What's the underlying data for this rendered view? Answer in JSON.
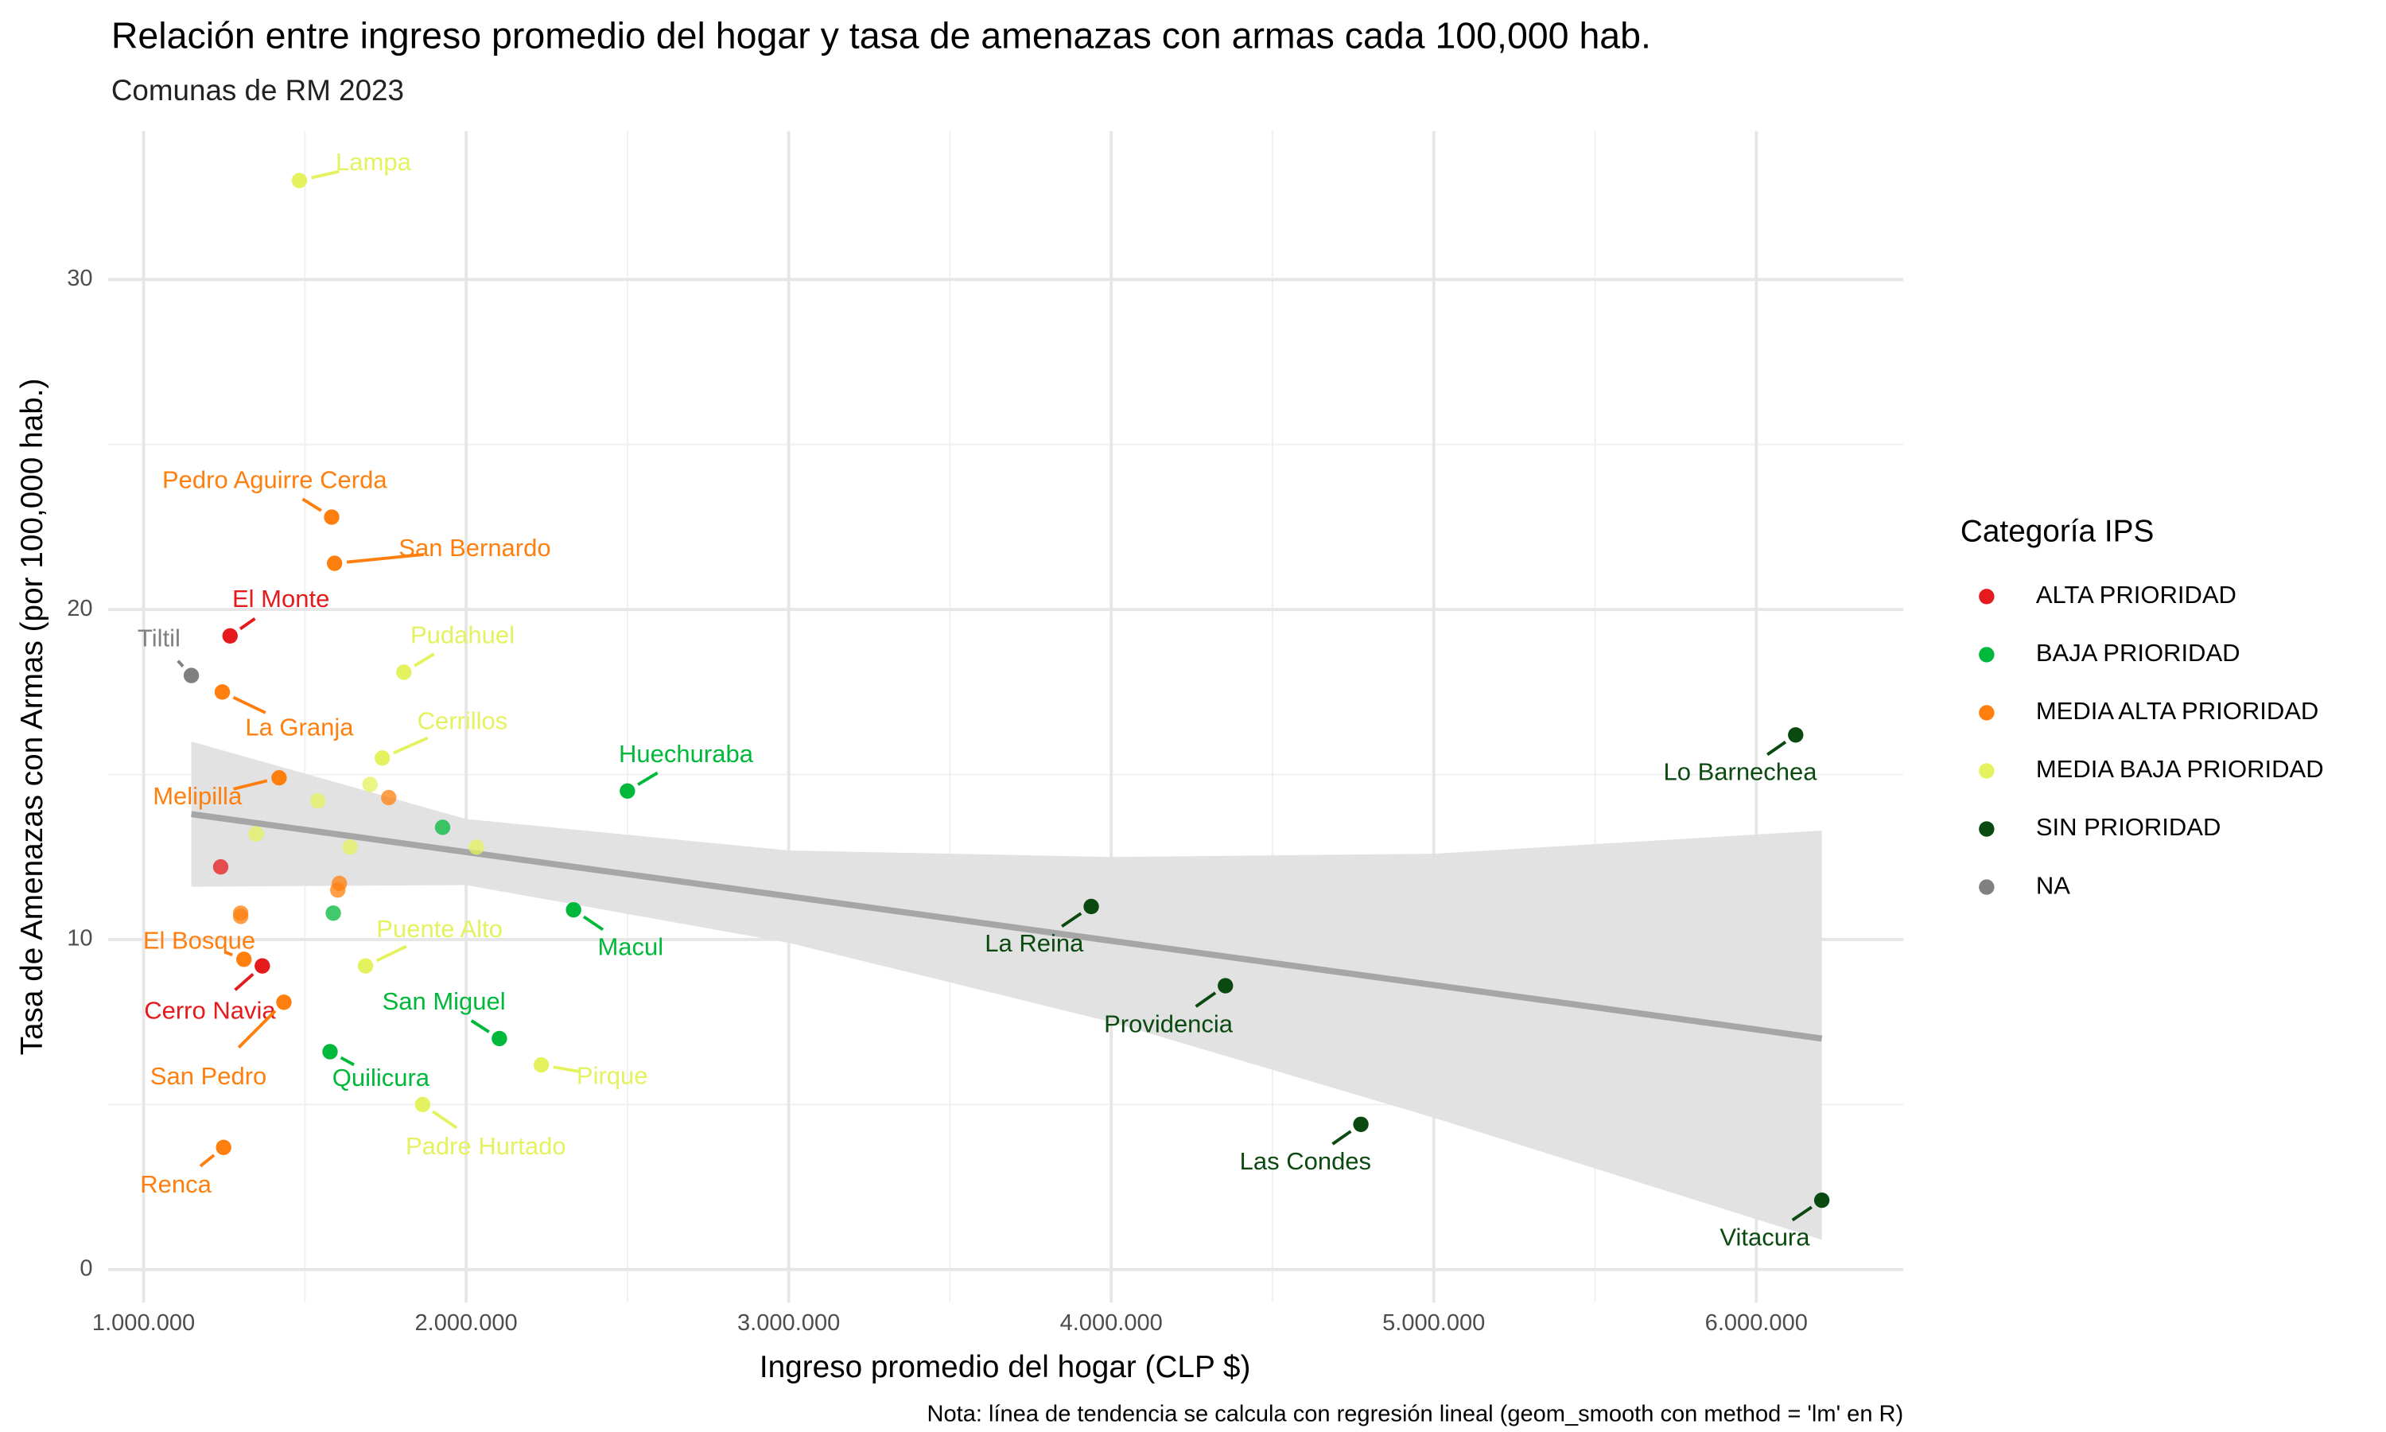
{
  "chart_data": {
    "type": "scatter",
    "title": "Relación entre ingreso promedio del hogar y tasa de amenazas con armas cada 100,000 hab.",
    "subtitle": "Comunas de RM 2023",
    "x_label": "Ingreso promedio del hogar (CLP $)",
    "y_label": "Tasa de Amenazas con Armas (por 100,000 hab.)",
    "caption": "Nota: línea de tendencia se calcula con regresión lineal (geom_smooth con method = 'lm' en R)",
    "legend_title": "Categoría IPS",
    "legend_position": "right",
    "grid": true,
    "xlim": [
      890000,
      6456000
    ],
    "ylim": [
      -1.0,
      34.5
    ],
    "xticks": [
      {
        "value": 1000000,
        "label": "1.000.000"
      },
      {
        "value": 2000000,
        "label": "2.000.000"
      },
      {
        "value": 3000000,
        "label": "3.000.000"
      },
      {
        "value": 4000000,
        "label": "4.000.000"
      },
      {
        "value": 5000000,
        "label": "5.000.000"
      },
      {
        "value": 6000000,
        "label": "6.000.000"
      }
    ],
    "yticks": [
      0,
      10,
      20,
      30
    ],
    "trend": {
      "color": "#a6a6a6",
      "band_color": "#e0e0e0",
      "x": [
        1148000,
        2000000,
        3000000,
        4000000,
        5000000,
        6203000
      ],
      "values": [
        13.8,
        12.65,
        11.31,
        9.96,
        8.62,
        7.0
      ],
      "lower": [
        11.6,
        11.65,
        9.9,
        7.5,
        4.6,
        0.9
      ],
      "upper": [
        16.0,
        13.65,
        12.7,
        12.5,
        12.6,
        13.3
      ]
    },
    "series": [
      {
        "name": "ALTA PRIORIDAD",
        "color": "#e41a1c",
        "x": [
          1268000,
          1368000,
          1239000
        ],
        "values": [
          19.2,
          9.2,
          12.2
        ],
        "labels": [
          "El Monte",
          "Cerro Navia",
          null
        ]
      },
      {
        "name": "BAJA PRIORIDAD",
        "color": "#00b83a",
        "x": [
          2500000,
          2333000,
          2103000,
          1578000,
          1927000,
          1588000
        ],
        "values": [
          14.5,
          10.9,
          7.0,
          6.6,
          13.4,
          10.8
        ],
        "labels": [
          "Huechuraba",
          "Macul",
          "San Miguel",
          "Quilicura",
          null,
          null
        ]
      },
      {
        "name": "MEDIA ALTA PRIORIDAD",
        "color": "#ff7f0e",
        "x": [
          1583000,
          1592000,
          1244000,
          1420000,
          1311000,
          1435000,
          1248000,
          1760000,
          1607000,
          1602000,
          1301000,
          1301000
        ],
        "values": [
          22.8,
          21.4,
          17.5,
          14.9,
          9.4,
          8.1,
          3.7,
          14.3,
          11.7,
          11.5,
          10.8,
          10.7
        ],
        "labels": [
          "Pedro Aguirre Cerda",
          "San Bernardo",
          "La Granja",
          "Melipilla",
          "El Bosque",
          "San Pedro",
          "Renca",
          null,
          null,
          null,
          null,
          null
        ]
      },
      {
        "name": "MEDIA BAJA PRIORIDAD",
        "color": "#e3f25e",
        "x": [
          1483000,
          1807000,
          1740000,
          1688000,
          2233000,
          1865000,
          1540000,
          1702000,
          1349000,
          1640000,
          2032000
        ],
        "values": [
          33.0,
          18.1,
          15.5,
          9.2,
          6.2,
          5.0,
          14.2,
          14.7,
          13.2,
          12.8,
          12.8
        ],
        "labels": [
          "Lampa",
          "Pudahuel",
          "Cerrillos",
          "Puente Alto",
          "Pirque",
          "Padre Hurtado",
          null,
          null,
          null,
          null,
          null
        ]
      },
      {
        "name": "SIN PRIORIDAD",
        "color": "#0a4a10",
        "x": [
          6122000,
          3938000,
          4354000,
          4774000,
          6203000
        ],
        "values": [
          16.2,
          11.0,
          8.6,
          4.4,
          2.1
        ],
        "labels": [
          "Lo Barnechea",
          "La Reina",
          "Providencia",
          "Las Condes",
          "Vitacura"
        ]
      },
      {
        "name": "NA",
        "color": "#808080",
        "x": [
          1148000
        ],
        "values": [
          18.0
        ],
        "labels": [
          "Tiltil"
        ]
      }
    ]
  }
}
